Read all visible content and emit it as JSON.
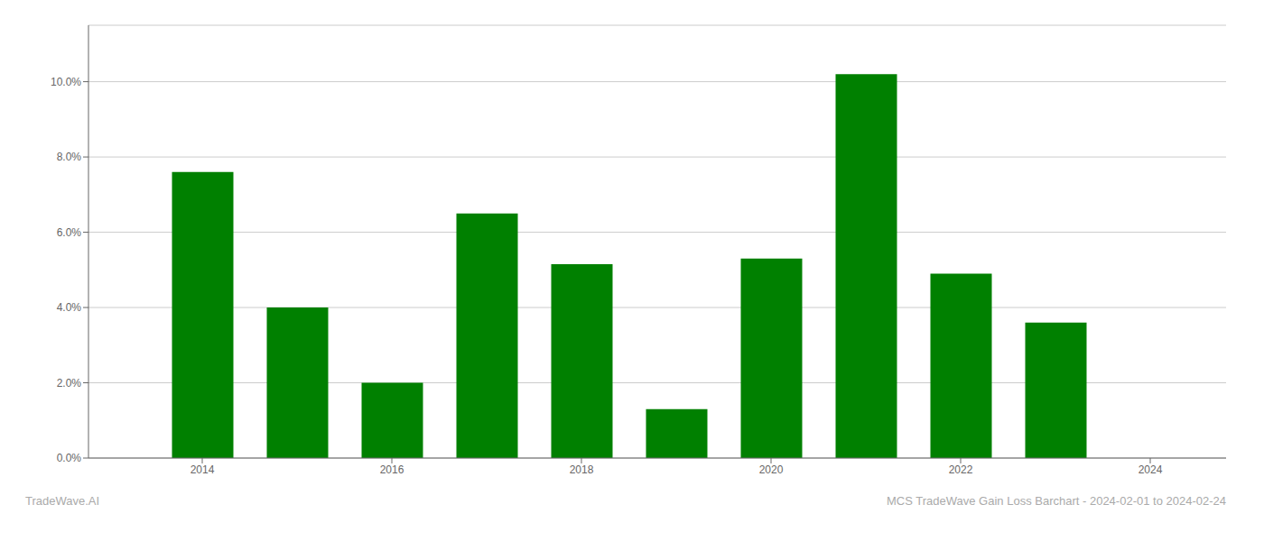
{
  "chart_data": {
    "type": "bar",
    "x": [
      2014,
      2015,
      2016,
      2017,
      2018,
      2019,
      2020,
      2021,
      2022,
      2023
    ],
    "values": [
      0.076,
      0.04,
      0.02,
      0.065,
      0.0515,
      0.013,
      0.053,
      0.102,
      0.049,
      0.036
    ],
    "color": "#008000",
    "xlim": [
      2012.8,
      2024.8
    ],
    "xticks": [
      2014,
      2016,
      2018,
      2020,
      2022,
      2024
    ],
    "ylim": [
      0,
      0.115
    ],
    "yticks": [
      {
        "value": 0.0,
        "label": "0.0%"
      },
      {
        "value": 0.02,
        "label": "2.0%"
      },
      {
        "value": 0.04,
        "label": "4.0%"
      },
      {
        "value": 0.06,
        "label": "6.0%"
      },
      {
        "value": 0.08,
        "label": "8.0%"
      },
      {
        "value": 0.1,
        "label": "10.0%"
      }
    ],
    "grid": true,
    "annotations": [
      "TradeWave.AI",
      "MCS TradeWave Gain Loss Barchart - 2024-02-01 to 2024-02-24"
    ]
  }
}
